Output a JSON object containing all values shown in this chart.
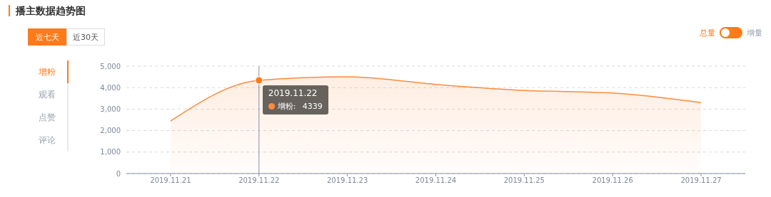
{
  "chart_data": {
    "type": "area",
    "title": "播主数据趋势图",
    "categories": [
      "2019.11.21",
      "2019.11.22",
      "2019.11.23",
      "2019.11.24",
      "2019.11.25",
      "2019.11.26",
      "2019.11.27"
    ],
    "series": [
      {
        "name": "增粉",
        "color": "#ff8a3d",
        "values": [
          2450,
          4339,
          4500,
          4150,
          3870,
          3750,
          3300
        ]
      }
    ],
    "ylim": [
      0,
      5000
    ],
    "yticks": [
      0,
      {
        "value": 1000,
        "label": "1,000"
      },
      {
        "value": 2000,
        "label": "2,000"
      },
      {
        "value": 3000,
        "label": "3,000"
      },
      {
        "value": 4000,
        "label": "4,000"
      },
      {
        "value": 5000,
        "label": "5,000"
      }
    ],
    "grid": "y",
    "marker": "none",
    "line_style": "solid",
    "legend": false,
    "ref_lines": [
      {
        "axis": "x",
        "value": "2019.11.22",
        "color": "#8a8fb0"
      }
    ],
    "annotations": [
      "近七天",
      "近30天",
      "观看",
      "点赞",
      "评论",
      "总量",
      "增量",
      {
        "text": "2019.11.22\n增粉:\n4339",
        "x": "2019.11.22",
        "y": 4339
      }
    ]
  }
}
